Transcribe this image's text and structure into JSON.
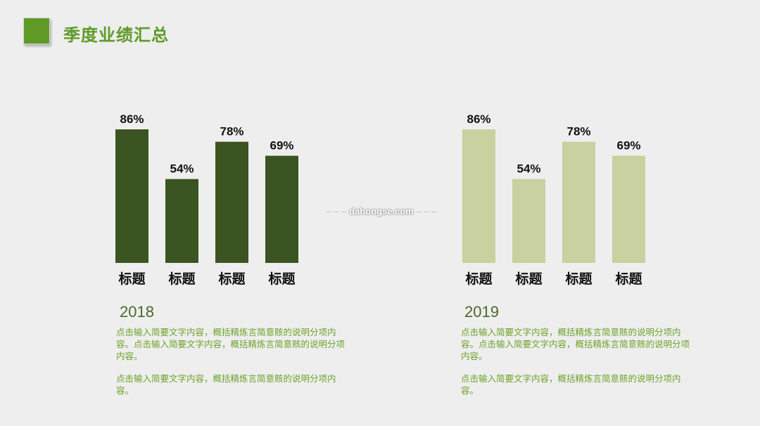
{
  "page": {
    "title": "季度业绩汇总",
    "watermark": "dahongse.com"
  },
  "chart_data": [
    {
      "type": "bar",
      "categories": [
        "标题",
        "标题",
        "标题",
        "标题"
      ],
      "values": [
        86,
        54,
        78,
        69
      ],
      "value_labels": [
        "86%",
        "54%",
        "78%",
        "69%"
      ],
      "bar_color": "#3a5422",
      "ylim": [
        0,
        100
      ]
    },
    {
      "type": "bar",
      "categories": [
        "标题",
        "标题",
        "标题",
        "标题"
      ],
      "values": [
        86,
        54,
        78,
        69
      ],
      "value_labels": [
        "86%",
        "54%",
        "78%",
        "69%"
      ],
      "bar_color": "#c8d19f",
      "ylim": [
        0,
        100
      ]
    }
  ],
  "left_panel": {
    "year": "2018",
    "para1": "点击输入简要文字内容，概括精炼言简意赅的说明分项内容。点击输入简要文字内容，概括精炼言简意赅的说明分项内容。",
    "para2": "点击输入简要文字内容，概括精炼言简意赅的说明分项内容。"
  },
  "right_panel": {
    "year": "2019",
    "para1": "点击输入简要文字内容，概括精炼言简意赅的说明分项内容。点击输入简要文字内容，概括精炼言简意赅的说明分项内容。",
    "para2": "点击输入简要文字内容，概括精炼言简意赅的说明分项内容。"
  }
}
